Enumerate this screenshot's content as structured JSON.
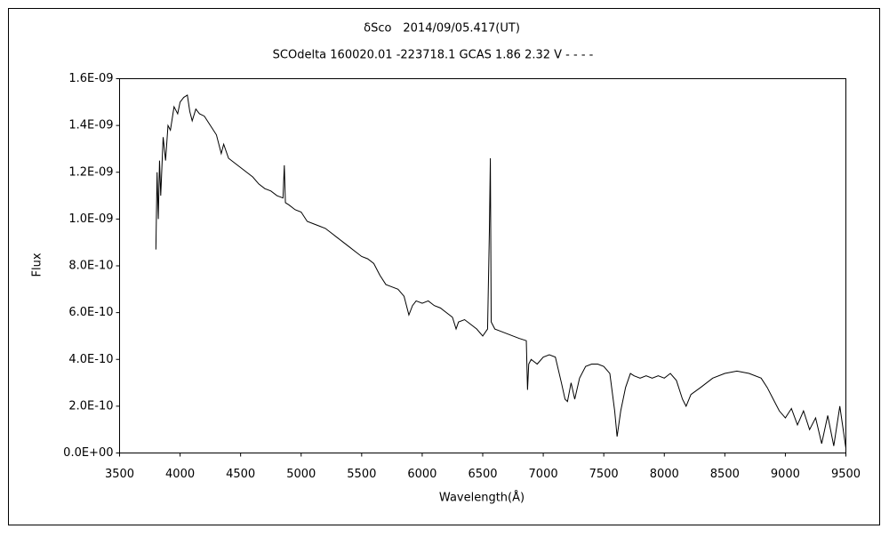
{
  "chart_data": {
    "type": "line",
    "title": "δSco　2014/09/05.417(UT)",
    "subtitle": "SCOdelta 160020.01 -223718.1 GCAS 1.86 2.32 V - - - -",
    "x_label": "Wavelength(Å)",
    "y_label": "Flux",
    "color": "#000000",
    "x": [
      3800,
      3810,
      3820,
      3830,
      3840,
      3860,
      3880,
      3900,
      3920,
      3950,
      3980,
      4000,
      4030,
      4060,
      4080,
      4100,
      4130,
      4160,
      4200,
      4250,
      4300,
      4340,
      4360,
      4400,
      4450,
      4500,
      4550,
      4600,
      4650,
      4700,
      4750,
      4800,
      4850,
      4861,
      4870,
      4900,
      4950,
      5000,
      5050,
      5100,
      5150,
      5200,
      5250,
      5300,
      5350,
      5400,
      5450,
      5500,
      5550,
      5600,
      5650,
      5700,
      5750,
      5800,
      5850,
      5890,
      5920,
      5950,
      6000,
      6050,
      6100,
      6150,
      6200,
      6250,
      6280,
      6300,
      6350,
      6400,
      6450,
      6500,
      6540,
      6555,
      6563,
      6570,
      6600,
      6650,
      6700,
      6750,
      6800,
      6860,
      6870,
      6880,
      6900,
      6950,
      7000,
      7050,
      7100,
      7150,
      7180,
      7200,
      7230,
      7260,
      7300,
      7350,
      7400,
      7450,
      7500,
      7550,
      7590,
      7610,
      7640,
      7680,
      7720,
      7750,
      7800,
      7850,
      7900,
      7950,
      8000,
      8050,
      8100,
      8150,
      8180,
      8220,
      8300,
      8400,
      8500,
      8600,
      8700,
      8800,
      8850,
      8900,
      8950,
      9000,
      9050,
      9100,
      9150,
      9200,
      9250,
      9300,
      9350,
      9400,
      9450,
      9500
    ],
    "values": [
      8.7e-10,
      1.2e-09,
      1e-09,
      1.25e-09,
      1.1e-09,
      1.35e-09,
      1.25e-09,
      1.4e-09,
      1.38e-09,
      1.48e-09,
      1.45e-09,
      1.5e-09,
      1.52e-09,
      1.53e-09,
      1.46e-09,
      1.42e-09,
      1.47e-09,
      1.45e-09,
      1.44e-09,
      1.4e-09,
      1.36e-09,
      1.28e-09,
      1.32e-09,
      1.26e-09,
      1.24e-09,
      1.22e-09,
      1.2e-09,
      1.18e-09,
      1.15e-09,
      1.13e-09,
      1.12e-09,
      1.1e-09,
      1.09e-09,
      1.23e-09,
      1.07e-09,
      1.06e-09,
      1.04e-09,
      1.03e-09,
      9.9e-10,
      9.8e-10,
      9.7e-10,
      9.6e-10,
      9.4e-10,
      9.2e-10,
      9e-10,
      8.8e-10,
      8.6e-10,
      8.4e-10,
      8.3e-10,
      8.1e-10,
      7.6e-10,
      7.2e-10,
      7.1e-10,
      7e-10,
      6.7e-10,
      5.9e-10,
      6.3e-10,
      6.5e-10,
      6.4e-10,
      6.5e-10,
      6.3e-10,
      6.2e-10,
      6e-10,
      5.8e-10,
      5.3e-10,
      5.6e-10,
      5.7e-10,
      5.5e-10,
      5.3e-10,
      5e-10,
      5.3e-10,
      9.5e-10,
      1.26e-09,
      5.6e-10,
      5.3e-10,
      5.2e-10,
      5.1e-10,
      5e-10,
      4.9e-10,
      4.8e-10,
      2.7e-10,
      3.8e-10,
      4e-10,
      3.8e-10,
      4.1e-10,
      4.2e-10,
      4.1e-10,
      3e-10,
      2.3e-10,
      2.2e-10,
      3e-10,
      2.3e-10,
      3.2e-10,
      3.7e-10,
      3.8e-10,
      3.8e-10,
      3.7e-10,
      3.4e-10,
      1.8e-10,
      7e-11,
      1.8e-10,
      2.8e-10,
      3.4e-10,
      3.3e-10,
      3.2e-10,
      3.3e-10,
      3.2e-10,
      3.3e-10,
      3.2e-10,
      3.4e-10,
      3.1e-10,
      2.3e-10,
      2e-10,
      2.5e-10,
      2.8e-10,
      3.2e-10,
      3.4e-10,
      3.5e-10,
      3.4e-10,
      3.2e-10,
      2.8e-10,
      2.3e-10,
      1.8e-10,
      1.5e-10,
      1.9e-10,
      1.2e-10,
      1.8e-10,
      1e-10,
      1.5e-10,
      4e-11,
      1.6e-10,
      3e-11,
      2e-10,
      2e-11
    ],
    "xlim": [
      3500,
      9500
    ],
    "xticks": [
      3500,
      4000,
      4500,
      5000,
      5500,
      6000,
      6500,
      7000,
      7500,
      8000,
      8500,
      9000,
      9500
    ],
    "ylim": [
      0,
      1.6e-09
    ],
    "yticks": [
      {
        "value": 0,
        "label": "0.0E+00"
      },
      {
        "value": 2e-10,
        "label": "2.0E-10"
      },
      {
        "value": 4e-10,
        "label": "4.0E-10"
      },
      {
        "value": 6e-10,
        "label": "6.0E-10"
      },
      {
        "value": 8e-10,
        "label": "8.0E-10"
      },
      {
        "value": 1e-09,
        "label": "1.0E-09"
      },
      {
        "value": 1.2e-09,
        "label": "1.2E-09"
      },
      {
        "value": 1.4e-09,
        "label": "1.4E-09"
      },
      {
        "value": 1.6e-09,
        "label": "1.6E-09"
      }
    ]
  }
}
